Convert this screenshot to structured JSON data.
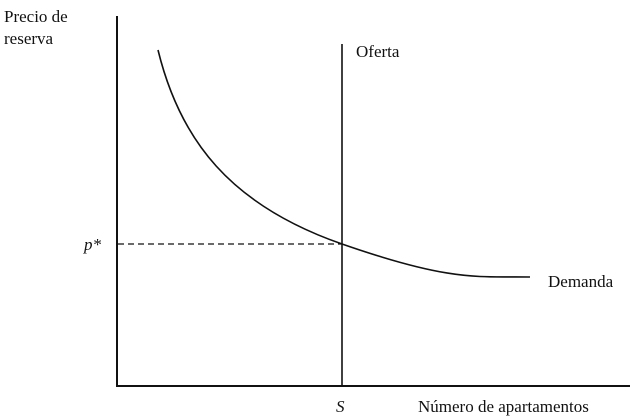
{
  "y_axis_label_line1": "Precio de",
  "y_axis_label_line2": "reserva",
  "x_axis_label": "Número de apartamentos",
  "supply_label": "Oferta",
  "demand_label": "Demanda",
  "price_tick_label": "p*",
  "quantity_tick_label": "S"
}
